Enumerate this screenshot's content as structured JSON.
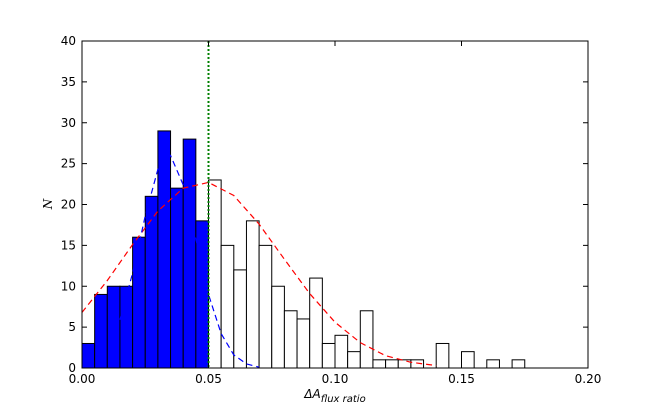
{
  "chart_data": {
    "type": "histogram",
    "x_label": "ΔA",
    "x_label_subscript": "flux ratio",
    "y_label": "N",
    "xlim": [
      0,
      0.2
    ],
    "ylim": [
      0,
      40
    ],
    "xticks": [
      {
        "value": 0,
        "label": "0.00"
      },
      {
        "value": 0.05,
        "label": "0.05"
      },
      {
        "value": 0.1,
        "label": "0.10"
      },
      {
        "value": 0.15,
        "label": "0.15"
      },
      {
        "value": 0.2,
        "label": "0.20"
      }
    ],
    "yticks": [
      0,
      5,
      10,
      15,
      20,
      25,
      30,
      35,
      40
    ],
    "grid": false,
    "series": [
      {
        "color": "#0000ff",
        "bins": [
          0,
          0.005,
          0.01,
          0.015,
          0.02,
          0.025,
          0.03,
          0.035,
          0.04,
          0.045,
          0.05
        ],
        "values": [
          3,
          9,
          10,
          10,
          16,
          21,
          29,
          22,
          28,
          18
        ]
      },
      {
        "color": "#ffffff",
        "bins": [
          0.05,
          0.055,
          0.06,
          0.065,
          0.07,
          0.075,
          0.08,
          0.085,
          0.09,
          0.095,
          0.1,
          0.105,
          0.11,
          0.115,
          0.12,
          0.125,
          0.13,
          0.135,
          0.14,
          0.145,
          0.15,
          0.155,
          0.16,
          0.165,
          0.17,
          0.175
        ],
        "values": [
          23,
          15,
          12,
          18,
          15,
          10,
          7,
          6,
          11,
          3,
          4,
          2,
          7,
          1,
          1,
          1,
          1,
          0,
          3,
          0,
          2,
          0,
          1,
          0,
          1
        ]
      }
    ],
    "fits": [
      {
        "color": "#ff0000",
        "x": [
          0,
          0.01,
          0.02,
          0.03,
          0.04,
          0.05,
          0.06,
          0.07,
          0.08,
          0.09,
          0.1,
          0.11,
          0.12,
          0.13,
          0.14
        ],
        "values": [
          6.8,
          10.7,
          15.1,
          19.2,
          22.0,
          22.7,
          21.1,
          17.6,
          13.3,
          9.1,
          5.6,
          3.1,
          1.5,
          0.7,
          0.3
        ]
      },
      {
        "color": "#0000ff",
        "x": [
          0.015,
          0.02,
          0.025,
          0.03,
          0.035,
          0.04,
          0.045,
          0.05,
          0.055,
          0.06,
          0.065,
          0.07
        ],
        "values": [
          5.9,
          11.6,
          18.6,
          24.3,
          26,
          22.4,
          15.8,
          9.0,
          4.2,
          1.6,
          0.5,
          0.1
        ]
      }
    ],
    "vline": {
      "x": 0.05,
      "color": "#008000"
    }
  }
}
